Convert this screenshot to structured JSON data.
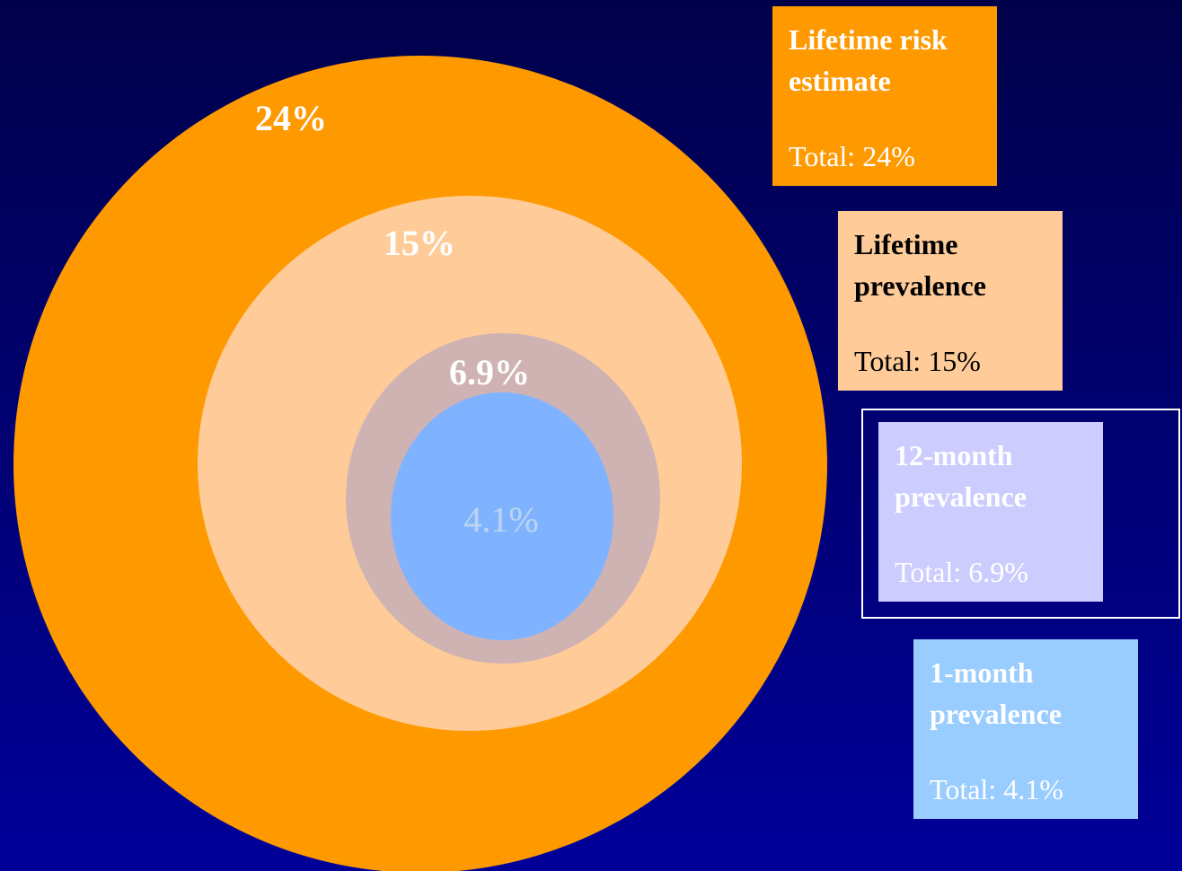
{
  "circles": [
    {
      "label": "24%"
    },
    {
      "label": "15%"
    },
    {
      "label": "6.9%"
    },
    {
      "label": "4.1%"
    }
  ],
  "legend": [
    {
      "title": "Lifetime risk estimate",
      "total": "Total: 24%"
    },
    {
      "title": "Lifetime prevalence",
      "total": "Total: 15%"
    },
    {
      "title": "12-month prevalence",
      "total": "Total: 6.9%"
    },
    {
      "title": "1-month prevalence",
      "total": "Total: 4.1%"
    }
  ]
}
